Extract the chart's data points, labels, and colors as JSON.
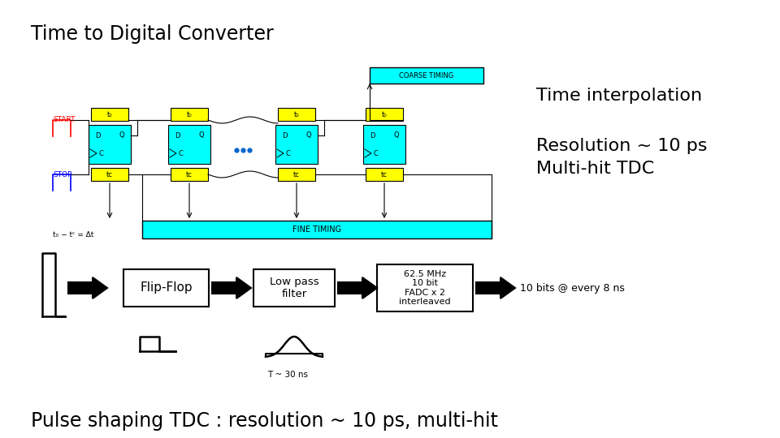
{
  "title": "Time to Digital Converter",
  "right_text_line1": "Time interpolation",
  "right_text_line2": "Resolution ~ 10 ps",
  "right_text_line3": "Multi-hit TDC",
  "bottom_text": "Pulse shaping TDC : resolution ~ 10 ps, multi-hit",
  "tdc_label": "COARSE TIMING",
  "fine_timing_label": "FINE TIMING",
  "start_label": "START",
  "stop_label": "STOP",
  "formula_label": "t₀ − tᶜ = Δt",
  "flip_flop_label": "Flip-Flop",
  "low_pass_label": "Low pass\nfilter",
  "adc_label": "62.5 MHz\n10 bit\nFADC x 2\ninterleaved",
  "output_label": "10 bits @ every 8 ns",
  "period_label": "T ~ 30 ns",
  "bg_color": "#ffffff",
  "cyan_color": "#00ffff",
  "yellow_color": "#ffff00",
  "black": "#000000",
  "white": "#ffffff",
  "red": "#ff0000",
  "blue": "#0000cc",
  "dot_blue": "#0066cc"
}
